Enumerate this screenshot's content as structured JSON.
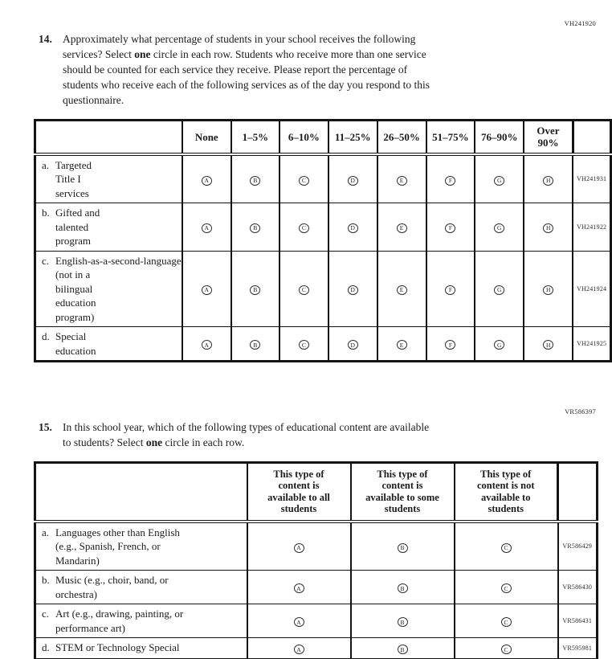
{
  "question14": {
    "code": "VH241920",
    "number": "14.",
    "text_lines": [
      [
        {
          "t": "Approximately what percentage of students in your school receives the following"
        }
      ],
      [
        {
          "t": "services? Select "
        },
        {
          "t": "one",
          "b": true
        },
        {
          "t": " circle in each row. Students who receive more than one service"
        }
      ],
      [
        {
          "t": "should be counted for each service they receive. Please report the percentage of"
        }
      ],
      [
        {
          "t": "students who receive each of the following services as of the day you respond to this"
        }
      ],
      [
        {
          "t": "questionnaire."
        }
      ]
    ],
    "table": {
      "column_headers": [
        [
          "None"
        ],
        [
          "1–5%"
        ],
        [
          "6–10%"
        ],
        [
          "11–25%"
        ],
        [
          "26–50%"
        ],
        [
          "51–75%"
        ],
        [
          "76–90%"
        ],
        [
          "Over",
          "90%"
        ]
      ],
      "option_letters": [
        "A",
        "B",
        "C",
        "D",
        "E",
        "F",
        "G",
        "H"
      ],
      "rows": [
        {
          "letter": "a.",
          "label_lines": [
            "Targeted",
            "Title I",
            "services"
          ],
          "code": "VH241931"
        },
        {
          "letter": "b.",
          "label_lines": [
            "Gifted and",
            "talented",
            "program"
          ],
          "code": "VH241922"
        },
        {
          "letter": "c.",
          "label_lines": [
            "English-as-a-second-language",
            "(not in a",
            "bilingual",
            "education",
            "program)"
          ],
          "code": "VH241924"
        },
        {
          "letter": "d.",
          "label_lines": [
            "Special",
            "education"
          ],
          "code": "VH241925"
        }
      ]
    }
  },
  "question15": {
    "code": "VR586397",
    "number": "15.",
    "text_lines": [
      [
        {
          "t": "In this school year, which of the following types of educational content are available"
        }
      ],
      [
        {
          "t": "to students? Select "
        },
        {
          "t": "one",
          "b": true
        },
        {
          "t": " circle in each row."
        }
      ]
    ],
    "table": {
      "column_headers": [
        [
          "This type of",
          "content is",
          "available to all",
          "students"
        ],
        [
          "This type of",
          "content is",
          "available to some",
          "students"
        ],
        [
          "This type of",
          "content is not",
          "available to",
          "students"
        ]
      ],
      "option_letters": [
        "A",
        "B",
        "C"
      ],
      "rows": [
        {
          "letter": "a.",
          "label_lines": [
            "Languages other than English",
            "(e.g., Spanish, French, or",
            "Mandarin)"
          ],
          "code": "VR586429"
        },
        {
          "letter": "b.",
          "label_lines": [
            "Music (e.g., choir, band, or",
            "orchestra)"
          ],
          "code": "VR586430"
        },
        {
          "letter": "c.",
          "label_lines": [
            "Art (e.g., drawing, painting, or",
            "performance art)"
          ],
          "code": "VR586431"
        },
        {
          "letter": "d.",
          "label_lines": [
            "STEM or Technology Special"
          ],
          "code": "VR595981"
        }
      ]
    }
  }
}
